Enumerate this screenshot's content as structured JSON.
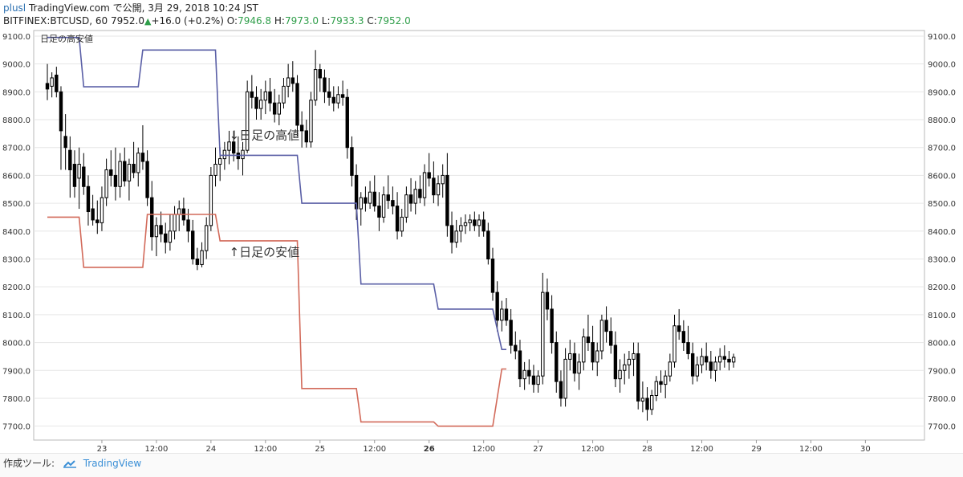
{
  "header": {
    "user": "plusl",
    "site": "TradingView.com",
    "published_text": "で公開, 3月 29, 2018 10:24 JST",
    "symbol_line": "BITFINEX:BTCUSD, 60",
    "last_price": "7952.0",
    "change": "+16.0 (+0.2%)",
    "o_label": "O:",
    "o_value": "7946.8",
    "h_label": "H:",
    "h_value": "7973.0",
    "l_label": "L:",
    "l_value": "7933.3",
    "c_label": "C:",
    "c_value": "7952.0"
  },
  "footer": {
    "made_with": "作成ツール:",
    "brand": "TradingView"
  },
  "colors": {
    "high_line": "#5a5fa6",
    "low_line": "#d26a5a",
    "candle": "#000000",
    "grid": "#e6e6e6",
    "axis_text": "#333333",
    "green": "#2f9e4a"
  },
  "chart_data": {
    "type": "candlestick",
    "symbol": "BITFINEX:BTCUSD",
    "interval": "60",
    "ylim": [
      7650,
      9120
    ],
    "yticks": [
      7700,
      7800,
      7900,
      8000,
      8100,
      8200,
      8300,
      8400,
      8500,
      8600,
      8700,
      8800,
      8900,
      9000,
      9100
    ],
    "ytick_labels": [
      "7700.0",
      "7800.0",
      "7900.0",
      "8000.0",
      "8100.0",
      "8200.0",
      "8300.0",
      "8400.0",
      "8500.0",
      "8600.0",
      "8700.0",
      "8800.0",
      "8900.0",
      "9000.0",
      "9100.0"
    ],
    "xlim": [
      -15,
      181
    ],
    "xticks": [
      {
        "hour": 0,
        "label": "23",
        "bold": false
      },
      {
        "hour": 12,
        "label": "12:00",
        "bold": false
      },
      {
        "hour": 24,
        "label": "24",
        "bold": false
      },
      {
        "hour": 36,
        "label": "12:00",
        "bold": false
      },
      {
        "hour": 48,
        "label": "25",
        "bold": false
      },
      {
        "hour": 60,
        "label": "12:00",
        "bold": false
      },
      {
        "hour": 72,
        "label": "26",
        "bold": true
      },
      {
        "hour": 84,
        "label": "12:00",
        "bold": false
      },
      {
        "hour": 96,
        "label": "27",
        "bold": false
      },
      {
        "hour": 108,
        "label": "12:00",
        "bold": false
      },
      {
        "hour": 120,
        "label": "28",
        "bold": false
      },
      {
        "hour": 132,
        "label": "12:00",
        "bold": false
      },
      {
        "hour": 144,
        "label": "29",
        "bold": false
      },
      {
        "hour": 156,
        "label": "12:00",
        "bold": false
      },
      {
        "hour": 168,
        "label": "30",
        "bold": false
      }
    ],
    "x_units": "hours since 23rd 00:00 (labels printed as days / 12:00)",
    "daily_high_series": {
      "name": "",
      "points": [
        [
          -12,
          9095
        ],
        [
          -5,
          9095
        ],
        [
          -4,
          8918
        ],
        [
          5,
          8918
        ],
        [
          8,
          8918
        ],
        [
          9,
          9050
        ],
        [
          25,
          9050
        ],
        [
          26,
          8672
        ],
        [
          43,
          8672
        ],
        [
          44,
          8500
        ],
        [
          56,
          8500
        ],
        [
          57,
          8210
        ],
        [
          73,
          8210
        ],
        [
          74,
          8120
        ],
        [
          86,
          8120
        ],
        [
          88,
          7975
        ],
        [
          89,
          7975
        ]
      ]
    },
    "daily_low_series": {
      "name": "",
      "points": [
        [
          -12,
          8450
        ],
        [
          -5,
          8450
        ],
        [
          -4,
          8270
        ],
        [
          9,
          8270
        ],
        [
          10,
          8460
        ],
        [
          25,
          8460
        ],
        [
          26,
          8365
        ],
        [
          43,
          8365
        ],
        [
          44,
          7835
        ],
        [
          56,
          7835
        ],
        [
          57,
          7715
        ],
        [
          73,
          7715
        ],
        [
          74,
          7700
        ],
        [
          86,
          7700
        ],
        [
          88,
          7905
        ],
        [
          89,
          7905
        ]
      ]
    },
    "annotations": [
      {
        "text": "日足の高安値",
        "position": "top-left"
      },
      {
        "text": "↓日足の高値",
        "x": 28,
        "y": 8730
      },
      {
        "text": "↑日足の安値",
        "x": 28,
        "y": 8310
      }
    ],
    "candles": [
      [
        -12,
        8930,
        9000,
        8870,
        8910
      ],
      [
        -11,
        8920,
        8970,
        8880,
        8950
      ],
      [
        -10,
        8960,
        8990,
        8880,
        8900
      ],
      [
        -9,
        8900,
        8920,
        8620,
        8760
      ],
      [
        -8,
        8740,
        8820,
        8620,
        8700
      ],
      [
        -7,
        8690,
        8740,
        8520,
        8620
      ],
      [
        -6,
        8640,
        8690,
        8520,
        8560
      ],
      [
        -5,
        8590,
        8700,
        8480,
        8640
      ],
      [
        -4,
        8630,
        8680,
        8530,
        8560
      ],
      [
        -3,
        8560,
        8600,
        8420,
        8470
      ],
      [
        -2,
        8480,
        8530,
        8420,
        8440
      ],
      [
        -1,
        8440,
        8510,
        8390,
        8430
      ],
      [
        0,
        8430,
        8560,
        8400,
        8520
      ],
      [
        1,
        8520,
        8660,
        8490,
        8620
      ],
      [
        2,
        8620,
        8690,
        8560,
        8600
      ],
      [
        3,
        8600,
        8700,
        8510,
        8560
      ],
      [
        4,
        8560,
        8680,
        8520,
        8650
      ],
      [
        5,
        8650,
        8700,
        8560,
        8580
      ],
      [
        6,
        8580,
        8660,
        8510,
        8640
      ],
      [
        7,
        8640,
        8720,
        8590,
        8610
      ],
      [
        8,
        8610,
        8700,
        8560,
        8680
      ],
      [
        9,
        8680,
        8780,
        8620,
        8650
      ],
      [
        10,
        8650,
        8690,
        8490,
        8520
      ],
      [
        11,
        8520,
        8580,
        8330,
        8380
      ],
      [
        12,
        8380,
        8450,
        8310,
        8420
      ],
      [
        13,
        8420,
        8470,
        8360,
        8390
      ],
      [
        14,
        8390,
        8430,
        8320,
        8360
      ],
      [
        15,
        8360,
        8460,
        8330,
        8400
      ],
      [
        16,
        8400,
        8490,
        8370,
        8460
      ],
      [
        17,
        8460,
        8510,
        8400,
        8480
      ],
      [
        18,
        8480,
        8520,
        8420,
        8440
      ],
      [
        19,
        8440,
        8480,
        8360,
        8400
      ],
      [
        20,
        8400,
        8440,
        8280,
        8300
      ],
      [
        21,
        8300,
        8340,
        8260,
        8280
      ],
      [
        22,
        8280,
        8360,
        8270,
        8330
      ],
      [
        23,
        8330,
        8450,
        8300,
        8420
      ],
      [
        24,
        8420,
        8630,
        8400,
        8600
      ],
      [
        25,
        8600,
        8700,
        8560,
        8640
      ],
      [
        26,
        8640,
        8700,
        8580,
        8660
      ],
      [
        27,
        8660,
        8720,
        8620,
        8690
      ],
      [
        28,
        8690,
        8760,
        8640,
        8720
      ],
      [
        29,
        8720,
        8760,
        8650,
        8680
      ],
      [
        30,
        8680,
        8740,
        8620,
        8660
      ],
      [
        31,
        8660,
        8720,
        8600,
        8690
      ],
      [
        32,
        8690,
        8940,
        8680,
        8900
      ],
      [
        33,
        8900,
        8960,
        8840,
        8880
      ],
      [
        34,
        8880,
        8920,
        8800,
        8840
      ],
      [
        35,
        8840,
        8910,
        8800,
        8870
      ],
      [
        36,
        8870,
        8940,
        8820,
        8900
      ],
      [
        37,
        8900,
        8950,
        8830,
        8860
      ],
      [
        38,
        8860,
        8910,
        8790,
        8820
      ],
      [
        39,
        8820,
        8890,
        8780,
        8860
      ],
      [
        40,
        8860,
        8950,
        8840,
        8920
      ],
      [
        41,
        8920,
        9000,
        8880,
        8950
      ],
      [
        42,
        8950,
        9010,
        8900,
        8930
      ],
      [
        43,
        8930,
        8960,
        8740,
        8780
      ],
      [
        44,
        8780,
        8830,
        8700,
        8760
      ],
      [
        45,
        8760,
        8800,
        8700,
        8720
      ],
      [
        46,
        8720,
        8900,
        8700,
        8870
      ],
      [
        47,
        8870,
        9050,
        8850,
        8980
      ],
      [
        48,
        8980,
        9000,
        8900,
        8950
      ],
      [
        49,
        8950,
        8980,
        8860,
        8900
      ],
      [
        50,
        8900,
        8950,
        8850,
        8880
      ],
      [
        51,
        8880,
        8920,
        8830,
        8860
      ],
      [
        52,
        8860,
        8920,
        8840,
        8890
      ],
      [
        53,
        8890,
        8940,
        8850,
        8880
      ],
      [
        54,
        8880,
        8910,
        8660,
        8700
      ],
      [
        55,
        8700,
        8740,
        8560,
        8600
      ],
      [
        56,
        8600,
        8640,
        8440,
        8480
      ],
      [
        57,
        8480,
        8540,
        8420,
        8520
      ],
      [
        58,
        8520,
        8560,
        8470,
        8500
      ],
      [
        59,
        8500,
        8580,
        8480,
        8540
      ],
      [
        60,
        8540,
        8600,
        8470,
        8490
      ],
      [
        61,
        8490,
        8540,
        8400,
        8450
      ],
      [
        62,
        8450,
        8560,
        8430,
        8530
      ],
      [
        63,
        8530,
        8600,
        8480,
        8510
      ],
      [
        64,
        8510,
        8560,
        8460,
        8490
      ],
      [
        65,
        8490,
        8540,
        8370,
        8400
      ],
      [
        66,
        8400,
        8480,
        8380,
        8450
      ],
      [
        67,
        8450,
        8560,
        8430,
        8530
      ],
      [
        68,
        8530,
        8590,
        8470,
        8500
      ],
      [
        69,
        8500,
        8580,
        8460,
        8550
      ],
      [
        70,
        8550,
        8600,
        8500,
        8520
      ],
      [
        71,
        8520,
        8640,
        8490,
        8610
      ],
      [
        72,
        8610,
        8680,
        8560,
        8590
      ],
      [
        73,
        8590,
        8650,
        8500,
        8530
      ],
      [
        74,
        8530,
        8600,
        8490,
        8570
      ],
      [
        75,
        8570,
        8640,
        8520,
        8600
      ],
      [
        76,
        8600,
        8680,
        8380,
        8420
      ],
      [
        77,
        8420,
        8470,
        8320,
        8360
      ],
      [
        78,
        8360,
        8440,
        8340,
        8400
      ],
      [
        79,
        8400,
        8450,
        8360,
        8420
      ],
      [
        80,
        8420,
        8460,
        8390,
        8430
      ],
      [
        81,
        8430,
        8460,
        8400,
        8440
      ],
      [
        82,
        8440,
        8470,
        8400,
        8420
      ],
      [
        83,
        8420,
        8460,
        8380,
        8440
      ],
      [
        84,
        8440,
        8470,
        8380,
        8400
      ],
      [
        85,
        8400,
        8430,
        8280,
        8300
      ],
      [
        86,
        8300,
        8340,
        8150,
        8180
      ],
      [
        87,
        8180,
        8220,
        8040,
        8080
      ],
      [
        88,
        8080,
        8150,
        8040,
        8120
      ],
      [
        89,
        8120,
        8160,
        8060,
        8080
      ],
      [
        90,
        8080,
        8120,
        7960,
        7990
      ],
      [
        91,
        7990,
        8040,
        7940,
        7970
      ],
      [
        92,
        7970,
        8010,
        7840,
        7870
      ],
      [
        93,
        7870,
        7930,
        7830,
        7900
      ],
      [
        94,
        7900,
        7940,
        7850,
        7880
      ],
      [
        95,
        7880,
        7920,
        7820,
        7850
      ],
      [
        96,
        7850,
        7900,
        7820,
        7880
      ],
      [
        97,
        7880,
        8250,
        7850,
        8180
      ],
      [
        98,
        8180,
        8230,
        8080,
        8120
      ],
      [
        99,
        8120,
        8170,
        7960,
        8000
      ],
      [
        100,
        8000,
        8040,
        7820,
        7860
      ],
      [
        101,
        7860,
        7900,
        7770,
        7800
      ],
      [
        102,
        7800,
        7980,
        7770,
        7940
      ],
      [
        103,
        7940,
        8010,
        7900,
        7960
      ],
      [
        104,
        7960,
        8000,
        7860,
        7890
      ],
      [
        105,
        7890,
        7960,
        7830,
        7930
      ],
      [
        106,
        7930,
        8050,
        7900,
        8020
      ],
      [
        107,
        8020,
        8100,
        7970,
        8000
      ],
      [
        108,
        8000,
        8060,
        7900,
        7930
      ],
      [
        109,
        7930,
        8000,
        7880,
        7970
      ],
      [
        110,
        7970,
        8100,
        7940,
        8080
      ],
      [
        111,
        8080,
        8130,
        8000,
        8040
      ],
      [
        112,
        8040,
        8090,
        7960,
        7990
      ],
      [
        113,
        7990,
        8040,
        7840,
        7870
      ],
      [
        114,
        7870,
        7940,
        7820,
        7900
      ],
      [
        115,
        7900,
        7960,
        7850,
        7920
      ],
      [
        116,
        7920,
        7970,
        7870,
        7940
      ],
      [
        117,
        7940,
        8000,
        7880,
        7960
      ],
      [
        118,
        7960,
        8000,
        7760,
        7790
      ],
      [
        119,
        7790,
        7860,
        7750,
        7800
      ],
      [
        120,
        7800,
        7840,
        7720,
        7760
      ],
      [
        121,
        7760,
        7830,
        7740,
        7810
      ],
      [
        122,
        7810,
        7880,
        7790,
        7860
      ],
      [
        123,
        7860,
        7900,
        7820,
        7850
      ],
      [
        124,
        7850,
        7900,
        7800,
        7880
      ],
      [
        125,
        7880,
        7960,
        7860,
        7930
      ],
      [
        126,
        7930,
        8100,
        7910,
        8060
      ],
      [
        127,
        8060,
        8120,
        8010,
        8040
      ],
      [
        128,
        8040,
        8080,
        7970,
        8000
      ],
      [
        129,
        8000,
        8060,
        7940,
        7960
      ],
      [
        130,
        7960,
        8000,
        7850,
        7880
      ],
      [
        131,
        7880,
        7950,
        7860,
        7920
      ],
      [
        132,
        7920,
        7980,
        7890,
        7950
      ],
      [
        133,
        7950,
        8000,
        7900,
        7930
      ],
      [
        134,
        7930,
        7970,
        7870,
        7900
      ],
      [
        135,
        7900,
        7950,
        7860,
        7930
      ],
      [
        136,
        7930,
        7980,
        7900,
        7950
      ],
      [
        137,
        7950,
        7990,
        7910,
        7940
      ],
      [
        138,
        7940,
        7970,
        7900,
        7930
      ],
      [
        139,
        7930,
        7960,
        7910,
        7947
      ]
    ]
  }
}
